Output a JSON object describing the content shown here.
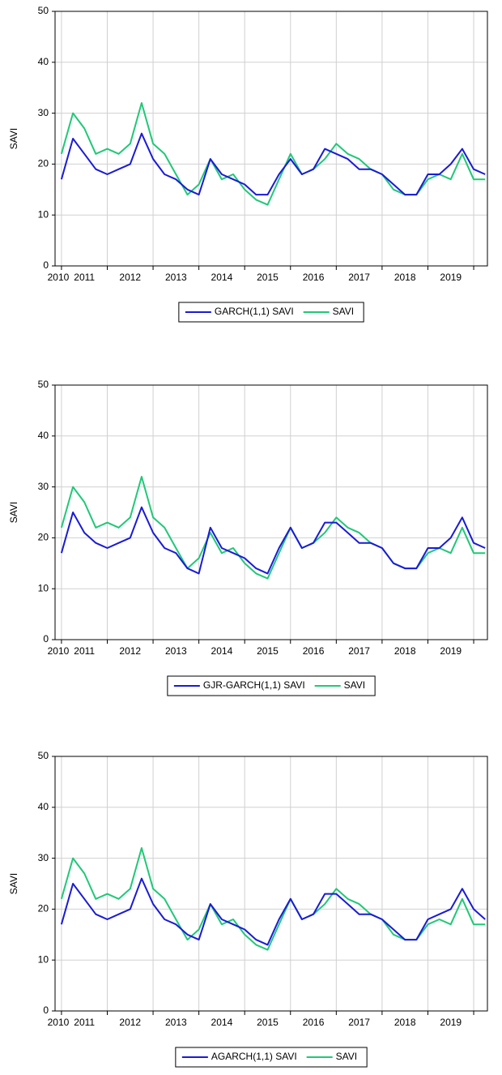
{
  "chart_data": [
    {
      "type": "line",
      "y_label": "SAVI",
      "x": [
        2010.0,
        2010.25,
        2010.5,
        2010.75,
        2011.0,
        2011.25,
        2011.5,
        2011.75,
        2012.0,
        2012.25,
        2012.5,
        2012.75,
        2013.0,
        2013.25,
        2013.5,
        2013.75,
        2014.0,
        2014.25,
        2014.5,
        2014.75,
        2015.0,
        2015.25,
        2015.5,
        2015.75,
        2016.0,
        2016.25,
        2016.5,
        2016.75,
        2017.0,
        2017.25,
        2017.5,
        2017.75,
        2018.0,
        2018.25,
        2018.5,
        2018.75,
        2019.0,
        2019.25
      ],
      "xlim": [
        2009.86,
        2019.3
      ],
      "ylim": [
        0,
        50
      ],
      "yticks": [
        0,
        10,
        20,
        30,
        40,
        50
      ],
      "xticks": [
        2010,
        2011,
        2012,
        2013,
        2014,
        2015,
        2016,
        2017,
        2018,
        2019
      ],
      "grid": true,
      "series": [
        {
          "name": "GARCH(1,1) SAVI",
          "color": "#1a1ad8",
          "values": [
            17,
            25,
            22,
            19,
            18,
            19,
            20,
            26,
            21,
            18,
            17,
            15,
            14,
            21,
            18,
            17,
            16,
            14,
            14,
            18,
            21,
            18,
            19,
            23,
            22,
            21,
            19,
            19,
            18,
            16,
            14,
            14,
            18,
            18,
            20,
            23,
            19,
            18
          ]
        },
        {
          "name": "SAVI",
          "color": "#20c878",
          "values": [
            22,
            30,
            27,
            22,
            23,
            22,
            24,
            32,
            24,
            22,
            18,
            14,
            16,
            21,
            17,
            18,
            15,
            13,
            12,
            17,
            22,
            18,
            19,
            21,
            24,
            22,
            21,
            19,
            18,
            15,
            14,
            14,
            17,
            18,
            17,
            22,
            17,
            17
          ]
        }
      ]
    },
    {
      "type": "line",
      "y_label": "SAVI",
      "x": [
        2010.0,
        2010.25,
        2010.5,
        2010.75,
        2011.0,
        2011.25,
        2011.5,
        2011.75,
        2012.0,
        2012.25,
        2012.5,
        2012.75,
        2013.0,
        2013.25,
        2013.5,
        2013.75,
        2014.0,
        2014.25,
        2014.5,
        2014.75,
        2015.0,
        2015.25,
        2015.5,
        2015.75,
        2016.0,
        2016.25,
        2016.5,
        2016.75,
        2017.0,
        2017.25,
        2017.5,
        2017.75,
        2018.0,
        2018.25,
        2018.5,
        2018.75,
        2019.0,
        2019.25
      ],
      "xlim": [
        2009.86,
        2019.3
      ],
      "ylim": [
        0,
        50
      ],
      "yticks": [
        0,
        10,
        20,
        30,
        40,
        50
      ],
      "xticks": [
        2010,
        2011,
        2012,
        2013,
        2014,
        2015,
        2016,
        2017,
        2018,
        2019
      ],
      "grid": true,
      "series": [
        {
          "name": "GJR-GARCH(1,1) SAVI",
          "color": "#1a1ad8",
          "values": [
            17,
            25,
            21,
            19,
            18,
            19,
            20,
            26,
            21,
            18,
            17,
            14,
            13,
            22,
            18,
            17,
            16,
            14,
            13,
            18,
            22,
            18,
            19,
            23,
            23,
            21,
            19,
            19,
            18,
            15,
            14,
            14,
            18,
            18,
            20,
            24,
            19,
            18
          ]
        },
        {
          "name": "SAVI",
          "color": "#20c878",
          "values": [
            22,
            30,
            27,
            22,
            23,
            22,
            24,
            32,
            24,
            22,
            18,
            14,
            16,
            21,
            17,
            18,
            15,
            13,
            12,
            17,
            22,
            18,
            19,
            21,
            24,
            22,
            21,
            19,
            18,
            15,
            14,
            14,
            17,
            18,
            17,
            22,
            17,
            17
          ]
        }
      ]
    },
    {
      "type": "line",
      "y_label": "SAVI",
      "x": [
        2010.0,
        2010.25,
        2010.5,
        2010.75,
        2011.0,
        2011.25,
        2011.5,
        2011.75,
        2012.0,
        2012.25,
        2012.5,
        2012.75,
        2013.0,
        2013.25,
        2013.5,
        2013.75,
        2014.0,
        2014.25,
        2014.5,
        2014.75,
        2015.0,
        2015.25,
        2015.5,
        2015.75,
        2016.0,
        2016.25,
        2016.5,
        2016.75,
        2017.0,
        2017.25,
        2017.5,
        2017.75,
        2018.0,
        2018.25,
        2018.5,
        2018.75,
        2019.0,
        2019.25
      ],
      "xlim": [
        2009.86,
        2019.3
      ],
      "ylim": [
        0,
        50
      ],
      "yticks": [
        0,
        10,
        20,
        30,
        40,
        50
      ],
      "xticks": [
        2010,
        2011,
        2012,
        2013,
        2014,
        2015,
        2016,
        2017,
        2018,
        2019
      ],
      "grid": true,
      "series": [
        {
          "name": "AGARCH(1,1) SAVI",
          "color": "#1a1ad8",
          "values": [
            17,
            25,
            22,
            19,
            18,
            19,
            20,
            26,
            21,
            18,
            17,
            15,
            14,
            21,
            18,
            17,
            16,
            14,
            13,
            18,
            22,
            18,
            19,
            23,
            23,
            21,
            19,
            19,
            18,
            16,
            14,
            14,
            18,
            19,
            20,
            24,
            20,
            18
          ]
        },
        {
          "name": "SAVI",
          "color": "#20c878",
          "values": [
            22,
            30,
            27,
            22,
            23,
            22,
            24,
            32,
            24,
            22,
            18,
            14,
            16,
            21,
            17,
            18,
            15,
            13,
            12,
            17,
            22,
            18,
            19,
            21,
            24,
            22,
            21,
            19,
            18,
            15,
            14,
            14,
            17,
            18,
            17,
            22,
            17,
            17
          ]
        }
      ]
    }
  ]
}
